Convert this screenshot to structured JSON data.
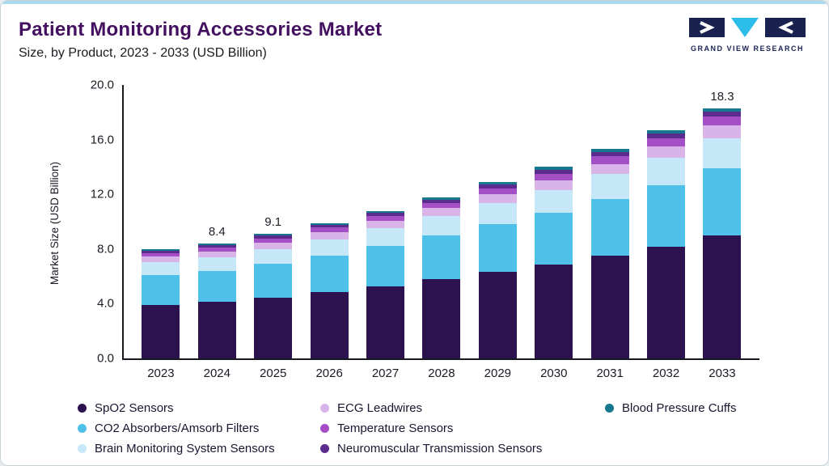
{
  "header": {
    "title": "Patient Monitoring Accessories Market",
    "subtitle": "Size, by Product, 2023 - 2033 (USD Billion)",
    "logo_text": "GRAND VIEW RESEARCH"
  },
  "colors": {
    "accent_top_line": "#ABDAEE",
    "title_text": "#43105F",
    "axis": "#17171F",
    "card_border": "#C9D4DA",
    "page_background": "#E7ECEF",
    "logo_navy": "#19224F",
    "logo_cyan": "#2BBCE8"
  },
  "chart_data": {
    "type": "bar",
    "stacked": true,
    "title": "Patient Monitoring Accessories Market Size, by Product, 2023 - 2033 (USD Billion)",
    "xlabel": "",
    "ylabel": "Market Size (USD Billion)",
    "ylim": [
      0,
      20
    ],
    "yticks": [
      "0.0",
      "4.0",
      "8.0",
      "12.0",
      "16.0",
      "20.0"
    ],
    "grid": false,
    "legend_position": "bottom",
    "categories": [
      "2023",
      "2024",
      "2025",
      "2026",
      "2027",
      "2028",
      "2029",
      "2030",
      "2031",
      "2032",
      "2033"
    ],
    "series": [
      {
        "name": "SpO2 Sensors",
        "color": "#2D1250",
        "values": [
          3.92,
          4.12,
          4.46,
          4.85,
          5.29,
          5.78,
          6.32,
          6.86,
          7.5,
          8.18,
          8.97
        ]
      },
      {
        "name": "CO2 Absorbers/Amsorb Filters",
        "color": "#4FC0EA",
        "values": [
          2.16,
          2.27,
          2.46,
          2.67,
          2.92,
          3.19,
          3.48,
          3.78,
          4.13,
          4.51,
          4.94
        ]
      },
      {
        "name": "Brain Monitoring System Sensors",
        "color": "#C6E7F7",
        "values": [
          0.96,
          1.01,
          1.09,
          1.19,
          1.3,
          1.42,
          1.55,
          1.68,
          1.84,
          2.0,
          2.2
        ]
      },
      {
        "name": "ECG Leadwires",
        "color": "#D9B4E8",
        "values": [
          0.4,
          0.42,
          0.46,
          0.5,
          0.54,
          0.59,
          0.65,
          0.7,
          0.76,
          0.84,
          0.92
        ]
      },
      {
        "name": "Temperature Sensors",
        "color": "#A44FC6",
        "values": [
          0.28,
          0.29,
          0.32,
          0.35,
          0.38,
          0.41,
          0.45,
          0.49,
          0.54,
          0.58,
          0.64
        ]
      },
      {
        "name": "Neuromuscular Transmission Sensors",
        "color": "#5B2B8E",
        "values": [
          0.16,
          0.17,
          0.18,
          0.2,
          0.22,
          0.24,
          0.26,
          0.28,
          0.31,
          0.34,
          0.37
        ]
      },
      {
        "name": "Blood Pressure Cuffs",
        "color": "#16778F",
        "values": [
          0.12,
          0.12,
          0.13,
          0.14,
          0.15,
          0.17,
          0.19,
          0.21,
          0.22,
          0.25,
          0.26
        ]
      }
    ],
    "totals": [
      8.0,
      8.4,
      9.1,
      9.9,
      10.8,
      11.8,
      12.9,
      14.0,
      15.3,
      16.7,
      18.3
    ],
    "annotations": [
      {
        "category": "2024",
        "label": "8.4"
      },
      {
        "category": "2025",
        "label": "9.1"
      },
      {
        "category": "2033",
        "label": "18.3"
      }
    ],
    "legend_rows": [
      [
        "SpO2 Sensors",
        "ECG Leadwires",
        "Blood Pressure Cuffs"
      ],
      [
        "CO2 Absorbers/Amsorb Filters",
        "Temperature Sensors",
        ""
      ],
      [
        "Brain Monitoring System Sensors",
        "Neuromuscular Transmission Sensors",
        ""
      ]
    ]
  }
}
